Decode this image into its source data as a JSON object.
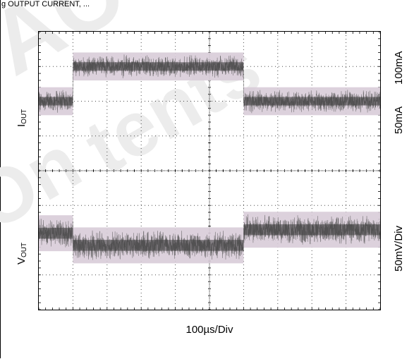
{
  "caption_top": "g OUTPUT CURRENT, ...",
  "watermark": {
    "line1": "AC",
    "line2": "tents",
    "line3": "On"
  },
  "chart_data": {
    "type": "line",
    "title": "",
    "xlabel": "100µs/Div",
    "grid": true,
    "divisions": {
      "x": 10,
      "y": 8
    },
    "traces": [
      {
        "label": "IOUT",
        "label_main": "I",
        "label_sub": "OUT",
        "scale_labels": [
          "100mA",
          "50mA"
        ],
        "step_times_div": [
          1,
          6
        ],
        "levels_div": [
          6.0,
          7.0,
          6.0
        ],
        "noise_div": 0.35
      },
      {
        "label": "VOUT",
        "label_main": "V",
        "label_sub": "OUT",
        "scale_labels": [
          "50mV/Div"
        ],
        "step_times_div": [
          1,
          6
        ],
        "levels_div": [
          2.2,
          1.85,
          2.3
        ],
        "noise_div": 0.45
      }
    ],
    "colors": {
      "trace": "#4a4a4a",
      "envelope": "#d8ccd8",
      "grid": "#000000"
    }
  }
}
